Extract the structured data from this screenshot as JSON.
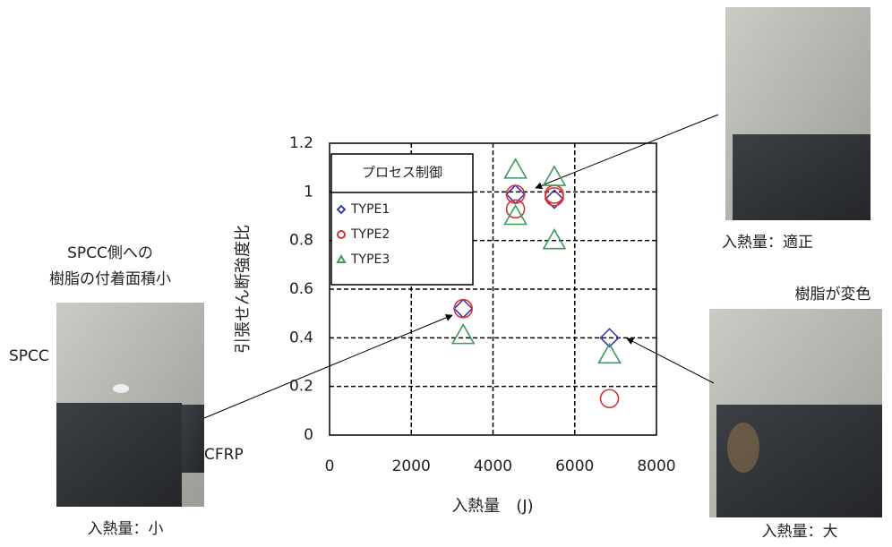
{
  "chart_data": {
    "type": "scatter",
    "xlabel": "入熱量　(J)",
    "ylabel": "引張せん断強度比",
    "legend_title": "プロセス制御",
    "xlim": [
      0,
      8000
    ],
    "xticks": [
      0,
      2000,
      4000,
      6000,
      8000
    ],
    "ylim": [
      0,
      1.2
    ],
    "yticks": [
      0,
      0.2,
      0.4,
      0.6,
      0.8,
      1,
      1.2
    ],
    "grid": true,
    "legend": "upper left",
    "series": [
      {
        "name": "TYPE1",
        "color": "#3a3aa8",
        "marker": "diamond",
        "x": [
          4550,
          5500,
          3270,
          6850
        ],
        "values": [
          0.99,
          0.97,
          0.52,
          0.4
        ]
      },
      {
        "name": "TYPE2",
        "color": "#d03535",
        "marker": "circle",
        "x": [
          4550,
          4550,
          5500,
          5500,
          3270,
          6850
        ],
        "values": [
          0.93,
          0.99,
          0.98,
          0.99,
          0.52,
          0.15
        ]
      },
      {
        "name": "TYPE3",
        "color": "#3c9a5c",
        "marker": "triangle",
        "x": [
          4550,
          4550,
          5500,
          5500,
          3270,
          6850
        ],
        "values": [
          1.09,
          0.9,
          1.06,
          0.8,
          0.41,
          0.33
        ]
      }
    ],
    "annotations": [
      "SPCC側への",
      "樹脂の付着面積小",
      "SPCC",
      "CFRP",
      "入熱量：小",
      "入熱量：適正",
      "樹脂が変色",
      "入熱量：大"
    ]
  }
}
